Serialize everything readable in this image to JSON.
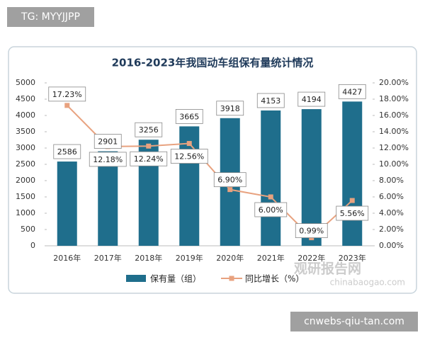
{
  "overlay": {
    "tag": "TG: MYYJJPP",
    "footer": "cnwebs-qiu-tan.com",
    "watermark": {
      "name": "观研报告网",
      "url": "chinabaogao.com"
    }
  },
  "chart_data": {
    "type": "bar",
    "title": "2016-2023年我国动车组保有量统计情况",
    "categories": [
      "2016年",
      "2017年",
      "2018年",
      "2019年",
      "2020年",
      "2021年",
      "2022年",
      "2023年"
    ],
    "series": [
      {
        "name": "保有量（组）",
        "type": "bar",
        "color": "#1f6e8c",
        "values": [
          2586,
          2901,
          3256,
          3665,
          3918,
          4153,
          4194,
          4427
        ]
      },
      {
        "name": "同比增长（%）",
        "type": "line",
        "axis": "y2",
        "color": "#e8a27f",
        "values": [
          17.23,
          12.18,
          12.24,
          12.56,
          6.9,
          6.0,
          0.99,
          5.56
        ],
        "value_labels": [
          "17.23%",
          "12.18%",
          "12.24%",
          "12.56%",
          "6.90%",
          "6.00%",
          "0.99%",
          "5.56%"
        ]
      }
    ],
    "ylim": [
      0,
      5000
    ],
    "yticks": [
      0,
      500,
      1000,
      1500,
      2000,
      2500,
      3000,
      3500,
      4000,
      4500,
      5000
    ],
    "y2lim": [
      0,
      20
    ],
    "y2ticks": [
      {
        "value": 0,
        "label": "0.00%"
      },
      {
        "value": 2,
        "label": "2.00%"
      },
      {
        "value": 4,
        "label": "4.00%"
      },
      {
        "value": 6,
        "label": "6.00%"
      },
      {
        "value": 8,
        "label": "8.00%"
      },
      {
        "value": 10,
        "label": "10.00%"
      },
      {
        "value": 12,
        "label": "12.00%"
      },
      {
        "value": 14,
        "label": "14.00%"
      },
      {
        "value": 16,
        "label": "16.00%"
      },
      {
        "value": 18,
        "label": "18.00%"
      },
      {
        "value": 20,
        "label": "20.00%"
      }
    ],
    "legend": "bottom"
  }
}
